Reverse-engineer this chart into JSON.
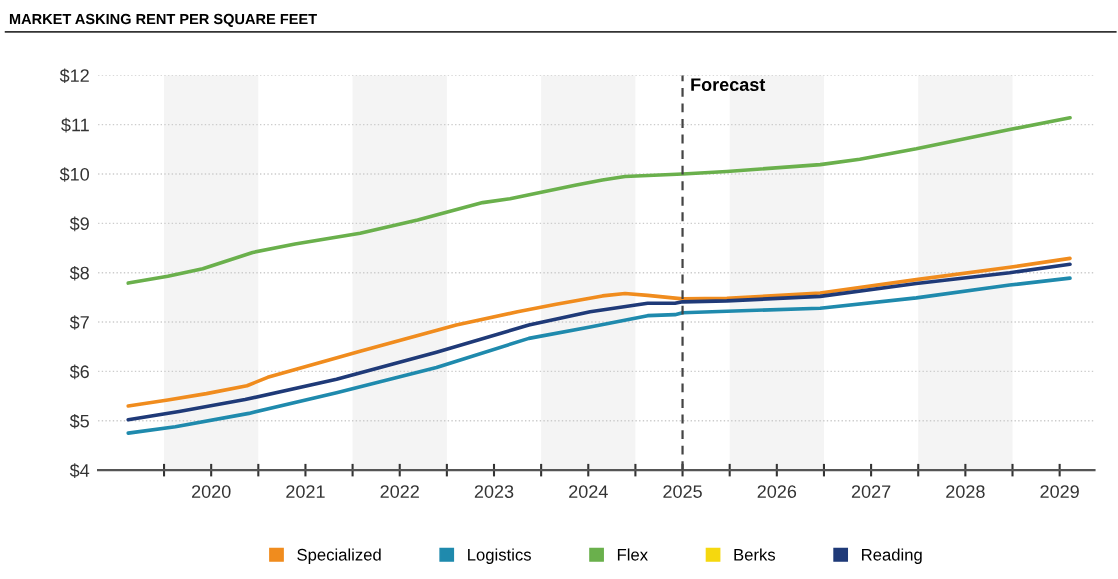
{
  "chart_data": {
    "type": "line",
    "title": "MARKET ASKING RENT PER SQUARE FEET",
    "xlim": [
      2019.3,
      2029.87
    ],
    "ylim": [
      4,
      12
    ],
    "xticks": [
      {
        "value": 2020,
        "label": null
      },
      {
        "value": 2020.5,
        "label": "2020"
      },
      {
        "value": 2021,
        "label": null
      },
      {
        "value": 2021.5,
        "label": "2021"
      },
      {
        "value": 2022,
        "label": null
      },
      {
        "value": 2022.5,
        "label": "2022"
      },
      {
        "value": 2023,
        "label": null
      },
      {
        "value": 2023.5,
        "label": "2023"
      },
      {
        "value": 2024,
        "label": null
      },
      {
        "value": 2024.5,
        "label": "2024"
      },
      {
        "value": 2025,
        "label": null
      },
      {
        "value": 2025.5,
        "label": "2025"
      },
      {
        "value": 2026,
        "label": null
      },
      {
        "value": 2026.5,
        "label": "2026"
      },
      {
        "value": 2027,
        "label": null
      },
      {
        "value": 2027.5,
        "label": "2027"
      },
      {
        "value": 2028,
        "label": null
      },
      {
        "value": 2028.5,
        "label": "2028"
      },
      {
        "value": 2029,
        "label": null
      },
      {
        "value": 2029.5,
        "label": "2029"
      }
    ],
    "yticks": [
      {
        "value": 4,
        "label": "$4"
      },
      {
        "value": 5,
        "label": "$5"
      },
      {
        "value": 6,
        "label": "$6"
      },
      {
        "value": 7,
        "label": "$7"
      },
      {
        "value": 8,
        "label": "$8"
      },
      {
        "value": 9,
        "label": "$9"
      },
      {
        "value": 10,
        "label": "$10"
      },
      {
        "value": 11,
        "label": "$11"
      },
      {
        "value": 12,
        "label": "$12"
      }
    ],
    "grid": "y",
    "legend": "bottom",
    "marker": "none",
    "line_style": "solid",
    "ref_lines": [
      {
        "axis": "x",
        "value": 2025.5,
        "label": "Forecast",
        "color": "#444444",
        "line_style": "dashed"
      }
    ],
    "bands": [
      {
        "axis": "x",
        "from": 2020,
        "to": 2021,
        "label": null,
        "color": "#f4f4f4"
      },
      {
        "axis": "x",
        "from": 2022,
        "to": 2023,
        "label": null,
        "color": "#f4f4f4"
      },
      {
        "axis": "x",
        "from": 2024,
        "to": 2025,
        "label": null,
        "color": "#f4f4f4"
      },
      {
        "axis": "x",
        "from": 2026,
        "to": 2027,
        "label": null,
        "color": "#f4f4f4"
      },
      {
        "axis": "x",
        "from": 2028,
        "to": 2029,
        "label": null,
        "color": "#f4f4f4"
      }
    ],
    "series": [
      {
        "name": "Specialized",
        "color": "#f08c1e",
        "x": [
          2019.62,
          2020.04,
          2020.45,
          2020.88,
          2021.1,
          2022.08,
          2023.1,
          2023.75,
          2024.16,
          2024.65,
          2024.89,
          2025.13,
          2025.5,
          2025.97,
          2026.96,
          2027.98,
          2028.97,
          2029.61
        ],
        "values": [
          5.3,
          5.42,
          5.55,
          5.71,
          5.88,
          6.41,
          6.94,
          7.21,
          7.36,
          7.53,
          7.58,
          7.54,
          7.47,
          7.48,
          7.59,
          7.86,
          8.11,
          8.29
        ]
      },
      {
        "name": "Logistics",
        "color": "#1f8aad",
        "x": [
          2019.62,
          2020.12,
          2020.9,
          2021.83,
          2022.89,
          2023.87,
          2024.52,
          2025.13,
          2025.42,
          2025.5,
          2025.97,
          2026.96,
          2027.98,
          2028.97,
          2029.61
        ],
        "values": [
          4.75,
          4.88,
          5.15,
          5.57,
          6.08,
          6.67,
          6.9,
          7.13,
          7.15,
          7.19,
          7.22,
          7.28,
          7.49,
          7.75,
          7.89
        ]
      },
      {
        "name": "Flex",
        "color": "#6ab04c",
        "x": [
          2019.62,
          2020.04,
          2020.41,
          2020.94,
          2021.39,
          2022.08,
          2022.69,
          2023.38,
          2023.67,
          2024.36,
          2024.65,
          2024.89,
          2025.5,
          2025.97,
          2026.96,
          2027.38,
          2027.98,
          2028.97,
          2029.61
        ],
        "values": [
          7.79,
          7.93,
          8.08,
          8.41,
          8.58,
          8.8,
          9.07,
          9.42,
          9.5,
          9.77,
          9.88,
          9.95,
          10.0,
          10.05,
          10.19,
          10.3,
          10.51,
          10.9,
          11.14
        ]
      },
      {
        "name": "Berks",
        "color": "#f5d80f"
      },
      {
        "name": "Reading",
        "color": "#1f3a78",
        "x": [
          2019.62,
          2020.16,
          2020.86,
          2021.83,
          2022.89,
          2023.87,
          2024.52,
          2025.13,
          2025.42,
          2025.5,
          2025.97,
          2026.96,
          2027.98,
          2028.97,
          2029.61
        ],
        "values": [
          5.02,
          5.19,
          5.43,
          5.84,
          6.39,
          6.94,
          7.21,
          7.38,
          7.38,
          7.41,
          7.43,
          7.52,
          7.78,
          8.0,
          8.17
        ]
      }
    ]
  }
}
